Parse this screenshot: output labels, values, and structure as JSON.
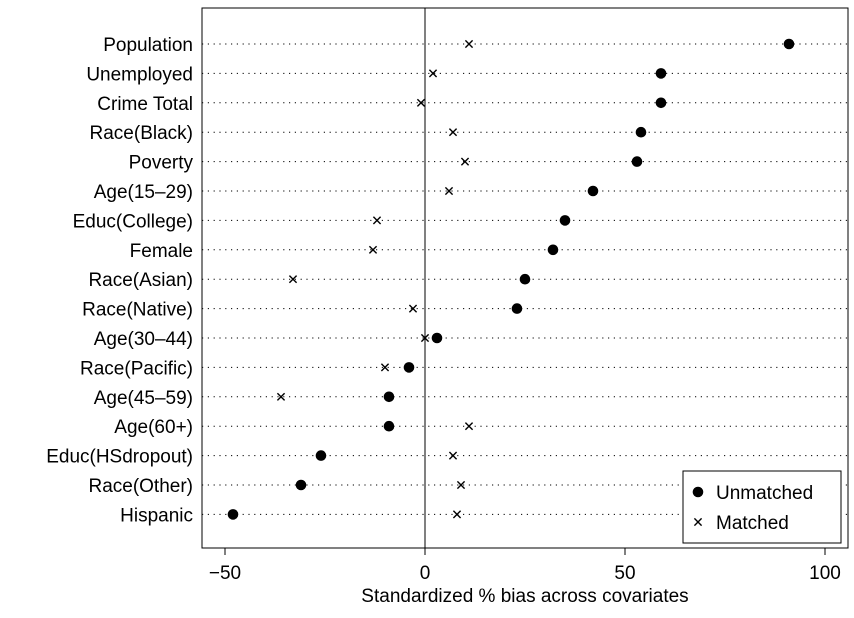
{
  "chart_data": {
    "type": "scatter",
    "orientation": "horizontal-dot-plot",
    "title": "",
    "xlabel": "Standardized % bias across covariates",
    "ylabel": "",
    "xlim": [
      -55,
      100
    ],
    "xticks": [
      -50,
      0,
      50,
      100
    ],
    "xtick_labels": [
      "−50",
      "0",
      "50",
      "100"
    ],
    "grid": "dotted horizontal guide per category",
    "reference_line_x": 0,
    "legend_position": "bottom-right",
    "categories": [
      "Population",
      "Unemployed",
      "Crime Total",
      "Race(Black)",
      "Poverty",
      "Age(15–29)",
      "Educ(College)",
      "Female",
      "Race(Asian)",
      "Race(Native)",
      "Age(30–44)",
      "Race(Pacific)",
      "Age(45–59)",
      "Age(60+)",
      "Educ(HSdropout)",
      "Race(Other)",
      "Hispanic"
    ],
    "series": [
      {
        "name": "Unmatched",
        "marker": "filled-circle",
        "values": [
          91,
          59,
          59,
          54,
          53,
          42,
          35,
          32,
          25,
          23,
          3,
          -4,
          -9,
          -9,
          -26,
          -31,
          -48
        ]
      },
      {
        "name": "Matched",
        "marker": "x",
        "values": [
          11,
          2,
          -1,
          7,
          10,
          6,
          -12,
          -13,
          -33,
          -3,
          0,
          -10,
          -36,
          11,
          7,
          9,
          8
        ]
      }
    ]
  }
}
